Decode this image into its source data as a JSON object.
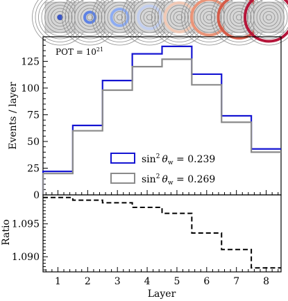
{
  "chart_data": [
    {
      "type": "line",
      "step": true,
      "panel": "main",
      "ylabel": "Events / layer",
      "annotation": {
        "text": "POT = ",
        "base": "10",
        "exp": "21"
      },
      "categories": [
        1,
        2,
        3,
        4,
        5,
        6,
        7,
        8
      ],
      "xlim": [
        0.5,
        8.5
      ],
      "ylim": [
        0,
        148
      ],
      "yticks": [
        0,
        25,
        50,
        75,
        100,
        125
      ],
      "grid": false,
      "legend_position": "center-right",
      "series": [
        {
          "name_prefix": "sin",
          "name_sup": "2",
          "name_theta": "θ",
          "name_sub": "w",
          "name_value": " = 0.239",
          "color": "#1414d2",
          "values": [
            22,
            65,
            107,
            132,
            139,
            113,
            74,
            43
          ]
        },
        {
          "name_prefix": "sin",
          "name_sup": "2",
          "name_theta": "θ",
          "name_sub": "w",
          "name_value": " = 0.269",
          "color": "#8a8a8a",
          "values": [
            20,
            60,
            98,
            120,
            127,
            103,
            68,
            40
          ]
        }
      ]
    },
    {
      "type": "line",
      "step": true,
      "panel": "ratio",
      "xlabel": "Layer",
      "ylabel": "Ratio",
      "xticks": [
        1,
        2,
        3,
        4,
        5,
        6,
        7,
        8
      ],
      "xlim": [
        0.5,
        8.5
      ],
      "ylim": [
        1.0877,
        1.0994
      ],
      "yticks": [
        "1.090",
        "1.095"
      ],
      "grid": false,
      "series": [
        {
          "style": "dashed",
          "color": "#000000",
          "values": [
            1.099,
            1.0986,
            1.0982,
            1.0975,
            1.0966,
            1.0936,
            1.0911,
            1.0883
          ]
        }
      ]
    }
  ],
  "icons": {
    "description": "per-layer detector schematic",
    "colors": [
      "#3a56c8",
      "#5e82e4",
      "#8eacf2",
      "#c3cfee",
      "#f0c9b6",
      "#ea9478",
      "#d45b48",
      "#b5163a"
    ]
  }
}
